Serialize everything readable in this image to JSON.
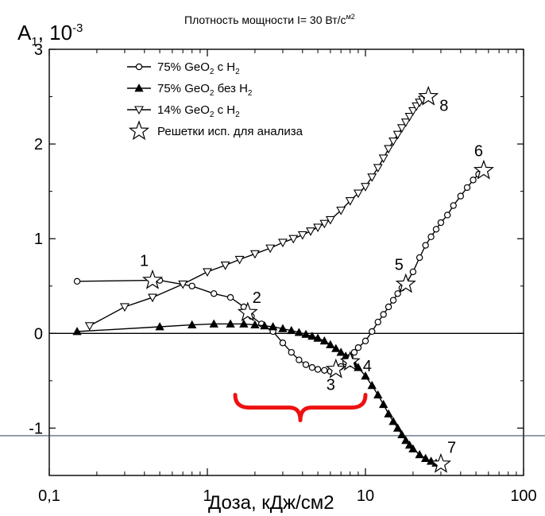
{
  "chart_data": {
    "type": "scatter",
    "title": "Плотность мощности I= 30 Вт/с",
    "title_sup": "м2",
    "ylabel_main": "A",
    "ylabel_sub": "1",
    "ylabel_rest": ", 10",
    "ylabel_sup": "-3",
    "xlabel": "Доза, кДж/см2",
    "x_scale": "log",
    "xlim": [
      0.1,
      100
    ],
    "ylim": [
      -1.5,
      3
    ],
    "x_ticks": [
      0.1,
      1,
      10,
      100
    ],
    "x_tick_labels": [
      "0,1",
      "1",
      "10",
      "100"
    ],
    "y_ticks": [
      -1,
      0,
      1,
      2,
      3
    ],
    "y_tick_labels": [
      "-1",
      "0",
      "1",
      "2",
      "3"
    ],
    "grid": false,
    "legend_position": "top-left",
    "legend": [
      {
        "pre": "75% GeO",
        "sub": "2",
        "mid": " с H",
        "sub2": "2",
        "marker": "circle"
      },
      {
        "pre": "75% GeO",
        "sub": "2",
        "mid": " без H",
        "sub2": "2",
        "marker": "triangle-up"
      },
      {
        "pre": "14% GeO",
        "sub": "2",
        "mid": " с H",
        "sub2": "2",
        "marker": "triangle-down"
      },
      {
        "pre": "Решетки исп. для анализа",
        "sub": "",
        "mid": "",
        "sub2": "",
        "marker": "star"
      }
    ],
    "series": [
      {
        "marker": "circle",
        "x": [
          0.15,
          0.45,
          0.5,
          0.8,
          1.1,
          1.4,
          1.7,
          1.9,
          2.2,
          2.6,
          3.0,
          3.4,
          3.8,
          4.2,
          4.6,
          5.0,
          5.5,
          6.0,
          6.5,
          7.0,
          7.5,
          8.0,
          8.5,
          9.0,
          10,
          11,
          12,
          13,
          14,
          15,
          16,
          17,
          18,
          20,
          22,
          24,
          26,
          28,
          30,
          33,
          36,
          40,
          44,
          48,
          52,
          56
        ],
        "y": [
          0.55,
          0.56,
          0.56,
          0.5,
          0.42,
          0.38,
          0.28,
          0.18,
          0.1,
          0.02,
          -0.1,
          -0.2,
          -0.28,
          -0.33,
          -0.36,
          -0.38,
          -0.39,
          -0.4,
          -0.39,
          -0.35,
          -0.3,
          -0.25,
          -0.2,
          -0.15,
          -0.08,
          0.02,
          0.12,
          0.2,
          0.28,
          0.35,
          0.42,
          0.48,
          0.52,
          0.65,
          0.8,
          0.93,
          1.02,
          1.1,
          1.17,
          1.25,
          1.35,
          1.45,
          1.54,
          1.62,
          1.68,
          1.72
        ]
      },
      {
        "marker": "triangle-up",
        "x": [
          0.15,
          0.5,
          0.8,
          1.1,
          1.4,
          1.7,
          2.0,
          2.3,
          2.6,
          3.0,
          3.4,
          3.8,
          4.2,
          4.6,
          5.0,
          5.5,
          6.0,
          6.5,
          7.0,
          7.5,
          8.0,
          8.5,
          9.0,
          10,
          11,
          12,
          13,
          14,
          15,
          16,
          17,
          18,
          19,
          20,
          22,
          24,
          26,
          28,
          30
        ],
        "y": [
          0.02,
          0.07,
          0.09,
          0.1,
          0.1,
          0.1,
          0.09,
          0.08,
          0.07,
          0.05,
          0.03,
          0.01,
          -0.01,
          -0.03,
          -0.05,
          -0.08,
          -0.12,
          -0.16,
          -0.2,
          -0.24,
          -0.28,
          -0.32,
          -0.36,
          -0.45,
          -0.55,
          -0.65,
          -0.75,
          -0.85,
          -0.93,
          -1.0,
          -1.07,
          -1.13,
          -1.18,
          -1.22,
          -1.28,
          -1.32,
          -1.35,
          -1.37,
          -1.38
        ]
      },
      {
        "marker": "triangle-down",
        "x": [
          0.18,
          0.3,
          0.45,
          0.7,
          1.0,
          1.3,
          1.6,
          2.0,
          2.5,
          3.0,
          3.5,
          4.0,
          4.5,
          5.0,
          5.5,
          6.0,
          7.0,
          8.0,
          9.0,
          10,
          11,
          12,
          13,
          14,
          15,
          16,
          17,
          18,
          19,
          20,
          21,
          22,
          23,
          24,
          25
        ],
        "y": [
          0.08,
          0.28,
          0.38,
          0.52,
          0.65,
          0.72,
          0.78,
          0.84,
          0.9,
          0.96,
          1.0,
          1.04,
          1.08,
          1.12,
          1.16,
          1.2,
          1.3,
          1.4,
          1.48,
          1.55,
          1.65,
          1.75,
          1.85,
          1.95,
          2.03,
          2.1,
          2.17,
          2.23,
          2.29,
          2.35,
          2.4,
          2.44,
          2.47,
          2.49,
          2.5
        ]
      }
    ],
    "annotations": [
      {
        "label": "1",
        "x": 0.45,
        "y": 0.56
      },
      {
        "label": "2",
        "x": 1.8,
        "y": 0.22
      },
      {
        "label": "3",
        "x": 6.5,
        "y": -0.38
      },
      {
        "label": "4",
        "x": 8.0,
        "y": -0.3
      },
      {
        "label": "5",
        "x": 18,
        "y": 0.52
      },
      {
        "label": "6",
        "x": 56,
        "y": 1.72
      },
      {
        "label": "7",
        "x": 30,
        "y": -1.38
      },
      {
        "label": "8",
        "x": 25,
        "y": 2.5
      }
    ],
    "reference_lines": [
      {
        "orientation": "horizontal",
        "y": 0,
        "color": "#000000"
      }
    ],
    "brace": {
      "x_from": 1.5,
      "x_to": 10,
      "y": -0.75,
      "color": "#ee1111"
    },
    "colors": {
      "series": "#000000",
      "brace": "#ee1111",
      "guide_line": "#2b3a55"
    }
  }
}
